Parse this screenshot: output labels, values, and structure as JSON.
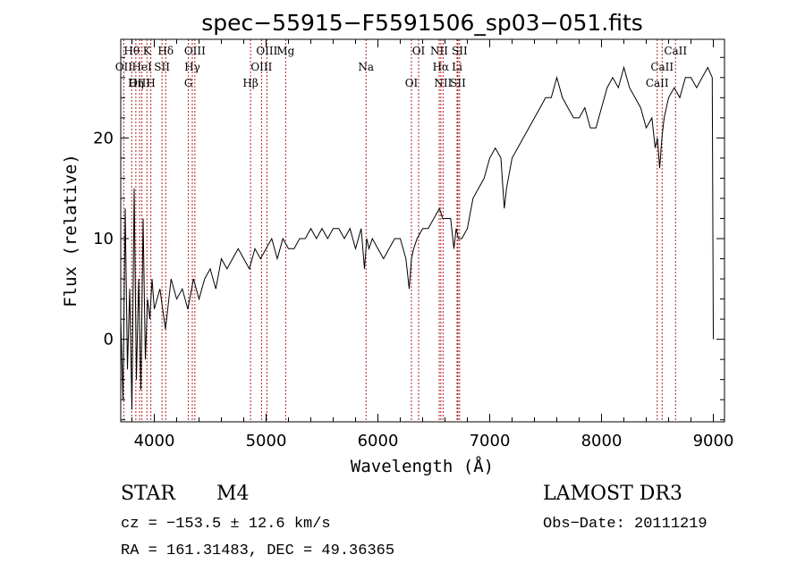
{
  "chart_data": {
    "type": "line",
    "title": "spec−55915−F5591506_sp03−051.fits",
    "xlabel": "Wavelength (Å)",
    "ylabel": "Flux (relative)",
    "xlim": [
      3700,
      9100
    ],
    "ylim": [
      -8.2,
      29.8
    ],
    "xticks": [
      4000,
      5000,
      6000,
      7000,
      8000,
      9000
    ],
    "yticks": [
      0,
      10,
      20
    ],
    "series": [
      {
        "name": "spectrum",
        "x": [
          3700,
          3720,
          3740,
          3760,
          3780,
          3800,
          3820,
          3840,
          3860,
          3880,
          3900,
          3920,
          3940,
          3960,
          3980,
          4000,
          4050,
          4100,
          4150,
          4200,
          4250,
          4300,
          4350,
          4400,
          4450,
          4500,
          4550,
          4600,
          4650,
          4700,
          4750,
          4800,
          4850,
          4900,
          4950,
          5000,
          5050,
          5100,
          5150,
          5200,
          5250,
          5300,
          5350,
          5400,
          5450,
          5500,
          5550,
          5600,
          5650,
          5700,
          5750,
          5800,
          5850,
          5880,
          5900,
          5920,
          5950,
          6000,
          6050,
          6100,
          6150,
          6200,
          6250,
          6280,
          6300,
          6320,
          6350,
          6400,
          6450,
          6500,
          6550,
          6580,
          6600,
          6650,
          6680,
          6700,
          6720,
          6750,
          6800,
          6850,
          6900,
          6950,
          7000,
          7050,
          7100,
          7130,
          7150,
          7200,
          7250,
          7300,
          7350,
          7400,
          7450,
          7500,
          7550,
          7600,
          7650,
          7700,
          7750,
          7800,
          7850,
          7900,
          7950,
          8000,
          8050,
          8100,
          8150,
          8200,
          8250,
          8300,
          8350,
          8400,
          8450,
          8480,
          8500,
          8520,
          8540,
          8560,
          8600,
          8650,
          8700,
          8750,
          8800,
          8850,
          8900,
          8950,
          8990,
          9000
        ],
        "y": [
          2,
          -6,
          13,
          -3,
          5,
          -7,
          15,
          -4,
          6,
          -5,
          12,
          -2,
          4,
          2,
          6,
          3,
          5,
          1,
          6,
          4,
          5,
          3,
          6,
          4,
          6,
          7,
          5,
          8,
          7,
          8,
          9,
          8,
          7,
          9,
          8,
          9,
          10,
          8,
          10,
          9,
          9,
          10,
          10,
          11,
          10,
          11,
          10,
          11,
          11,
          10,
          11,
          9,
          11,
          7,
          10,
          9,
          10,
          9,
          8,
          9,
          10,
          10,
          8,
          5,
          8,
          9,
          10,
          11,
          11,
          12,
          13,
          12,
          12,
          12,
          9,
          11,
          10,
          10,
          11,
          14,
          15,
          16,
          18,
          19,
          18,
          13,
          15,
          18,
          19,
          20,
          21,
          22,
          23,
          24,
          24,
          26,
          24,
          23,
          22,
          22,
          23,
          21,
          21,
          23,
          25,
          26,
          25,
          27,
          25,
          24,
          23,
          21,
          22,
          19,
          20,
          17,
          20,
          22,
          24,
          25,
          24,
          26,
          26,
          25,
          26,
          27,
          26,
          0
        ]
      }
    ],
    "emission_lines": [
      {
        "label": "Hθ",
        "wavelength": 3798
      },
      {
        "label": "OII",
        "wavelength": 3727
      },
      {
        "label": "OIII",
        "wavelength": 3869
      },
      {
        "label": "K",
        "wavelength": 3934
      },
      {
        "label": "HeI",
        "wavelength": 3889
      },
      {
        "label": "Hη",
        "wavelength": 3835
      },
      {
        "label": "Hδ",
        "wavelength": 4102
      },
      {
        "label": "SII",
        "wavelength": 4069
      },
      {
        "label": "H",
        "wavelength": 3969
      },
      {
        "label": "OIII",
        "wavelength": 4363
      },
      {
        "label": "Hγ",
        "wavelength": 4340
      },
      {
        "label": "G",
        "wavelength": 4305
      },
      {
        "label": "OIII",
        "wavelength": 5007
      },
      {
        "label": "OIII",
        "wavelength": 4959
      },
      {
        "label": "Hβ",
        "wavelength": 4861
      },
      {
        "label": "Mg",
        "wavelength": 5175
      },
      {
        "label": "Na",
        "wavelength": 5894
      },
      {
        "label": "OI",
        "wavelength": 6300
      },
      {
        "label": "OI",
        "wavelength": 6364
      },
      {
        "label": "Hα",
        "wavelength": 6563
      },
      {
        "label": "SII",
        "wavelength": 6716
      },
      {
        "label": "NII",
        "wavelength": 6548
      },
      {
        "label": "Li",
        "wavelength": 6708
      },
      {
        "label": "NII",
        "wavelength": 6583
      },
      {
        "label": "SII",
        "wavelength": 6731
      },
      {
        "label": "CaII",
        "wavelength": 8542
      },
      {
        "label": "CaII",
        "wavelength": 8498
      },
      {
        "label": "CaII",
        "wavelength": 8662
      }
    ]
  },
  "info": {
    "class_label": "STAR",
    "subclass": "M4",
    "survey": "LAMOST DR3",
    "cz": "cz = −153.5 ± 12.6 km/s",
    "obs_date": "Obs−Date: 20111219",
    "coords": "RA = 161.31483, DEC =  49.36365"
  },
  "colors": {
    "axes": "#000000",
    "spectrum": "#000000",
    "marker_lines": "#b22222"
  }
}
